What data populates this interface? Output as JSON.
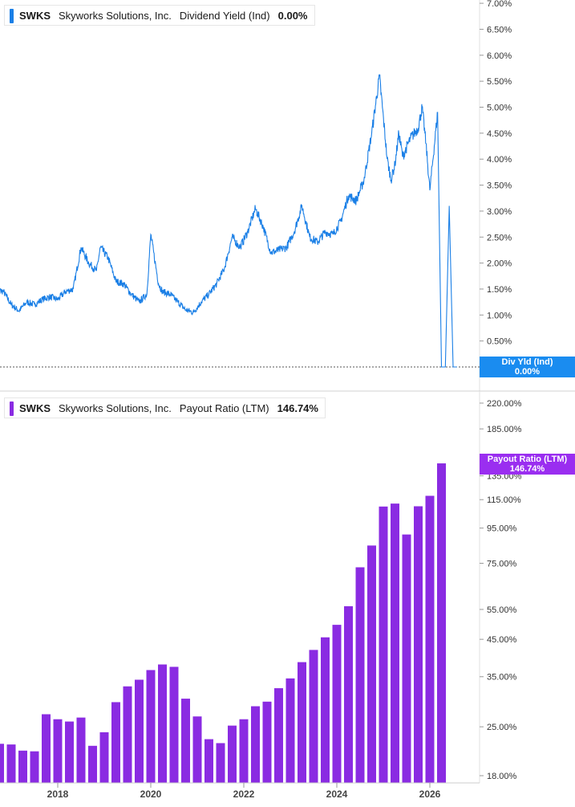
{
  "chart_data": [
    {
      "type": "line",
      "title": "",
      "legend": {
        "ticker": "SWKS",
        "company": "Skyworks Solutions, Inc.",
        "metric": "Dividend Yield (Ind)",
        "value": "0.00%"
      },
      "last_value_tag": {
        "label": "Div Yld (Ind)",
        "value": "0.00%"
      },
      "color": "#1a7fe6",
      "x_ticks": [
        "2018",
        "2020",
        "2022",
        "2024",
        "2026"
      ],
      "y_ticks": [
        "7.00%",
        "6.50%",
        "6.00%",
        "5.50%",
        "5.00%",
        "4.50%",
        "4.00%",
        "3.50%",
        "3.00%",
        "2.50%",
        "2.00%",
        "1.50%",
        "1.00%",
        "0.50%",
        "0.00%"
      ],
      "ylim": [
        0,
        7
      ],
      "x": [
        "2016-09",
        "2016-11",
        "2017-01",
        "2017-03",
        "2017-05",
        "2017-07",
        "2017-09",
        "2017-11",
        "2018-01",
        "2018-03",
        "2018-05",
        "2018-07",
        "2018-09",
        "2018-11",
        "2018-12",
        "2019-02",
        "2019-04",
        "2019-06",
        "2019-08",
        "2019-10",
        "2019-12",
        "2020-01",
        "2020-03",
        "2020-04",
        "2020-06",
        "2020-08",
        "2020-10",
        "2020-12",
        "2021-02",
        "2021-04",
        "2021-06",
        "2021-08",
        "2021-10",
        "2021-12",
        "2022-02",
        "2022-04",
        "2022-06",
        "2022-08",
        "2022-10",
        "2022-12",
        "2023-02",
        "2023-04",
        "2023-06",
        "2023-08",
        "2023-10",
        "2023-12",
        "2024-02",
        "2024-04",
        "2024-06",
        "2024-08",
        "2024-10",
        "2024-12",
        "2025-02",
        "2025-03",
        "2025-04",
        "2025-05",
        "2025-06",
        "2025-08",
        "2025-10",
        "2025-11",
        "2025-12",
        "2026-01",
        "2026-03",
        "2026-04",
        "2026-05",
        "2026-06",
        "2026-07",
        "2026-08"
      ],
      "values": [
        1.5,
        1.45,
        1.2,
        1.08,
        1.25,
        1.2,
        1.3,
        1.35,
        1.3,
        1.45,
        1.5,
        2.3,
        2.0,
        1.85,
        2.3,
        2.1,
        1.65,
        1.6,
        1.4,
        1.25,
        1.4,
        2.55,
        1.6,
        1.45,
        1.4,
        1.25,
        1.1,
        1.05,
        1.25,
        1.4,
        1.6,
        1.9,
        2.5,
        2.3,
        2.6,
        3.05,
        2.7,
        2.2,
        2.25,
        2.3,
        2.6,
        3.1,
        2.5,
        2.4,
        2.6,
        2.55,
        2.8,
        3.3,
        3.2,
        3.6,
        4.5,
        5.6,
        4.0,
        3.6,
        3.9,
        4.5,
        4.05,
        4.4,
        4.6,
        5.0,
        4.3,
        3.4,
        4.9,
        0.0,
        0.0,
        3.1,
        0.0,
        0.0
      ]
    },
    {
      "type": "bar",
      "title": "",
      "legend": {
        "ticker": "SWKS",
        "company": "Skyworks Solutions, Inc.",
        "metric": "Payout Ratio (LTM)",
        "value": "146.74%"
      },
      "last_value_tag": {
        "label": "Payout Ratio (LTM)",
        "value": "146.74%"
      },
      "color": "#8a2be2",
      "scale": "log",
      "x_ticks": [
        "2018",
        "2020",
        "2022",
        "2024",
        "2026"
      ],
      "y_ticks": [
        "220.00%",
        "185.00%",
        "135.00%",
        "115.00%",
        "95.00%",
        "75.00%",
        "55.00%",
        "45.00%",
        "35.00%",
        "25.00%",
        "18.00%"
      ],
      "ylim": [
        17,
        250
      ],
      "x": [
        "2016-07",
        "2016-10",
        "2017-01",
        "2017-04",
        "2017-07",
        "2017-10",
        "2018-01",
        "2018-04",
        "2018-07",
        "2018-10",
        "2019-01",
        "2019-04",
        "2019-07",
        "2019-10",
        "2020-01",
        "2020-04",
        "2020-07",
        "2020-10",
        "2021-01",
        "2021-04",
        "2021-07",
        "2021-10",
        "2022-01",
        "2022-04",
        "2022-07",
        "2022-10",
        "2023-01",
        "2023-04",
        "2023-07",
        "2023-10",
        "2024-01",
        "2024-04",
        "2024-07",
        "2024-10",
        "2025-01",
        "2025-04",
        "2025-07",
        "2025-10",
        "2026-01",
        "2026-04"
      ],
      "values": [
        20.5,
        22.3,
        22.2,
        21.3,
        21.2,
        27.2,
        26.3,
        25.9,
        26.6,
        22.0,
        24.1,
        29.5,
        32.8,
        34.3,
        36.6,
        38.0,
        37.4,
        30.2,
        26.8,
        23.0,
        22.4,
        25.2,
        26.3,
        28.7,
        29.6,
        32.4,
        34.6,
        38.6,
        41.9,
        45.6,
        49.6,
        56.2,
        73.0,
        84.5,
        109.8,
        112.0,
        91.0,
        110.0,
        118.0,
        146.74
      ]
    }
  ]
}
